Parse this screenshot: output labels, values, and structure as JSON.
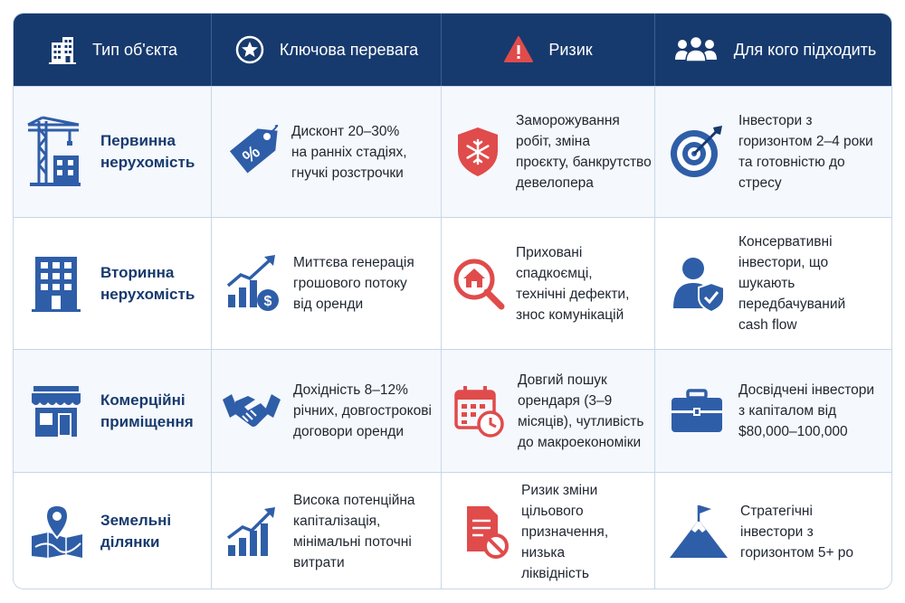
{
  "header": {
    "col1": {
      "label": "Тип об'єкта",
      "icon": "buildings-icon"
    },
    "col2": {
      "label": "Ключова перевага",
      "icon": "star-badge-icon"
    },
    "col3": {
      "label": "Ризик",
      "icon": "warning-icon"
    },
    "col4": {
      "label": "Для кого підходить",
      "icon": "people-group-icon"
    }
  },
  "rows": [
    {
      "type": "Первинна\nнерухомість",
      "type_icon": "construction-crane-icon",
      "advantage": "Дисконт 20–30%\nна ранніх стадіях,\nгнучкі розстрочки",
      "advantage_icon": "price-tag-percent-icon",
      "risk": "Заморожування\nробіт, зміна\nпроєкту, банкрутство\nдевелопера",
      "risk_icon": "shield-snowflake-icon",
      "audience": "Інвестори з\nгоризонтом 2–4 роки\nта готовністю до\nстресу",
      "audience_icon": "target-icon"
    },
    {
      "type": "Вторинна\nнерухомість",
      "type_icon": "apartment-building-icon",
      "advantage": "Миттєва генерація\nгрошового потоку\nвід оренди",
      "advantage_icon": "growth-chart-dollar-icon",
      "risk": "Приховані спадкоємці,\nтехнічні дефекти,\nзнос комунікацій",
      "risk_icon": "house-magnifier-icon",
      "audience": "Консервативні\nінвестори, що\nшукають\nпередбачуваний\ncash flow",
      "audience_icon": "person-shield-icon"
    },
    {
      "type": "Комерційні\nприміщення",
      "type_icon": "storefront-icon",
      "advantage": "Дохідність 8–12%\nрічних, довгострокові\nдоговори оренди",
      "advantage_icon": "handshake-icon",
      "risk": "Довгий пошук\nорендаря (3–9\nмісяців), чутливість\nдо макроекономіки",
      "risk_icon": "calendar-clock-icon",
      "audience": "Досвідчені інвестори\nз капіталом від\n$80,000–100,000",
      "audience_icon": "briefcase-icon"
    },
    {
      "type": "Земельні\nділянки",
      "type_icon": "map-pin-icon",
      "advantage": "Висока потенційна\nкапіталізація,\nмінімальні поточні\nвитрати",
      "advantage_icon": "growth-chart-icon",
      "risk": "Ризик зміни\nцільового\nпризначення, низька\nліквідність",
      "risk_icon": "document-prohibited-icon",
      "audience": "Стратегічні\nінвестори з\nгоризонтом 5+ ро",
      "audience_icon": "mountain-flag-icon"
    }
  ],
  "colors": {
    "header_bg": "#173a6e",
    "primary_blue": "#2f5ea8",
    "danger_red": "#e04b4b"
  }
}
